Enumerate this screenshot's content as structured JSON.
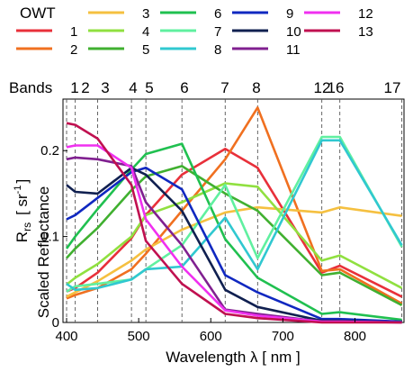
{
  "chart_data": {
    "type": "line",
    "legend": {
      "title": "OWT",
      "placement": "top",
      "entries": [
        {
          "label": "1",
          "color": "#e8303a"
        },
        {
          "label": "2",
          "color": "#f07020"
        },
        {
          "label": "3",
          "color": "#f5c040"
        },
        {
          "label": "4",
          "color": "#90e040"
        },
        {
          "label": "5",
          "color": "#40b030"
        },
        {
          "label": "6",
          "color": "#20c050"
        },
        {
          "label": "7",
          "color": "#60f0a0"
        },
        {
          "label": "8",
          "color": "#30c8d0"
        },
        {
          "label": "9",
          "color": "#1028c0"
        },
        {
          "label": "10",
          "color": "#102050"
        },
        {
          "label": "11",
          "color": "#802090"
        },
        {
          "label": "12",
          "color": "#f030f0"
        },
        {
          "label": "13",
          "color": "#c01050"
        }
      ]
    },
    "bands": {
      "title": "Bands",
      "wavelengths": [
        400,
        412,
        443,
        490,
        510,
        560,
        620,
        665,
        754,
        779,
        865
      ],
      "labels": [
        {
          "text": "1",
          "x": 400
        },
        {
          "text": "2",
          "x": 412
        },
        {
          "text": "3",
          "x": 443
        },
        {
          "text": "4",
          "x": 490
        },
        {
          "text": "5",
          "x": 510
        },
        {
          "text": "6",
          "x": 560
        },
        {
          "text": "7",
          "x": 620
        },
        {
          "text": "8",
          "x": 665
        },
        {
          "text": "12",
          "x": 754
        },
        {
          "text": "16",
          "x": 779
        },
        {
          "text": "17",
          "x": 865
        }
      ]
    },
    "x": [
      400,
      412,
      443,
      490,
      510,
      560,
      620,
      665,
      754,
      779,
      865
    ],
    "series": [
      {
        "color": "#e8303a",
        "values": [
          0.036,
          0.04,
          0.058,
          0.098,
          0.125,
          0.172,
          0.202,
          0.18,
          0.058,
          0.066,
          0.03
        ]
      },
      {
        "color": "#f07020",
        "values": [
          0.028,
          0.032,
          0.04,
          0.062,
          0.08,
          0.13,
          0.19,
          0.25,
          0.06,
          0.062,
          0.022
        ]
      },
      {
        "color": "#f5c040",
        "values": [
          0.03,
          0.035,
          0.048,
          0.072,
          0.085,
          0.108,
          0.128,
          0.134,
          0.128,
          0.134,
          0.124
        ]
      },
      {
        "color": "#90e040",
        "values": [
          0.044,
          0.052,
          0.068,
          0.1,
          0.125,
          0.14,
          0.162,
          0.158,
          0.072,
          0.078,
          0.04
        ]
      },
      {
        "color": "#40b030",
        "values": [
          0.075,
          0.086,
          0.11,
          0.154,
          0.17,
          0.182,
          0.15,
          0.13,
          0.055,
          0.058,
          0.02
        ]
      },
      {
        "color": "#20c050",
        "values": [
          0.086,
          0.1,
          0.132,
          0.178,
          0.196,
          0.208,
          0.097,
          0.052,
          0.01,
          0.012,
          0.003
        ]
      },
      {
        "color": "#60f0a0",
        "values": [
          0.036,
          0.042,
          0.045,
          0.05,
          0.062,
          0.09,
          0.16,
          0.075,
          0.216,
          0.216,
          0.088
        ]
      },
      {
        "color": "#30c8d0",
        "values": [
          0.045,
          0.038,
          0.04,
          0.05,
          0.062,
          0.065,
          0.122,
          0.062,
          0.212,
          0.212,
          0.09
        ]
      },
      {
        "color": "#1028c0",
        "values": [
          0.12,
          0.125,
          0.145,
          0.175,
          0.18,
          0.155,
          0.055,
          0.035,
          0.004,
          0.004,
          0.001
        ]
      },
      {
        "color": "#102050",
        "values": [
          0.16,
          0.152,
          0.15,
          0.18,
          0.172,
          0.13,
          0.038,
          0.018,
          0.002,
          0.002,
          0.0
        ]
      },
      {
        "color": "#802090",
        "values": [
          0.19,
          0.192,
          0.19,
          0.182,
          0.14,
          0.09,
          0.015,
          0.01,
          0.001,
          0.001,
          0.0
        ]
      },
      {
        "color": "#f030f0",
        "values": [
          0.204,
          0.206,
          0.206,
          0.18,
          0.12,
          0.065,
          0.014,
          0.008,
          0.001,
          0.001,
          0.0
        ]
      },
      {
        "color": "#c01050",
        "values": [
          0.232,
          0.23,
          0.214,
          0.16,
          0.095,
          0.045,
          0.01,
          0.005,
          0.0,
          0.0,
          0.0
        ]
      }
    ],
    "xlim": [
      395,
      868
    ],
    "ylim": [
      0,
      0.26
    ],
    "xticks": [
      400,
      500,
      600,
      700,
      800
    ],
    "yticks": [
      0,
      0.1,
      0.2
    ],
    "xtick_labels": [
      "400",
      "500",
      "600",
      "700",
      "800"
    ],
    "ytick_labels": [
      "0",
      "0.1",
      "0.2"
    ],
    "xlabel": "Wavelength λ [ nm ]",
    "ylabel_top": "R",
    "ylabel_top_sub": "rs",
    "ylabel_top_unit": "[ sr",
    "ylabel_top_sup": "-1",
    "ylabel_top_end": "]",
    "ylabel_bottom": "Scaled Reflectance",
    "grid": false
  }
}
